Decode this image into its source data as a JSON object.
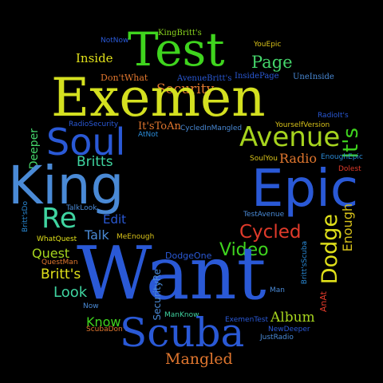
{
  "words": [
    {
      "text": "Security",
      "color": "#e0762e"
    },
    {
      "text": "KingBritt's",
      "color": "#8ad41e"
    },
    {
      "text": "NotNow",
      "color": "#2a59d6"
    },
    {
      "text": "YouEpic",
      "color": "#d8c21a"
    },
    {
      "text": "Test",
      "color": "#3fd41e"
    },
    {
      "text": "Inside",
      "color": "#e0e01a"
    },
    {
      "text": "Page",
      "color": "#44d46a"
    },
    {
      "text": "Don'tWhat",
      "color": "#e0762e"
    },
    {
      "text": "AvenueBritt's",
      "color": "#2a59d6"
    },
    {
      "text": "InsidePage",
      "color": "#2a59d6"
    },
    {
      "text": "UneInside",
      "color": "#4a8ad6"
    },
    {
      "text": "Exemen",
      "color": "#d4e020"
    },
    {
      "text": "RadioIt's",
      "color": "#2a59d6"
    },
    {
      "text": "RadioSecurity",
      "color": "#2a59d6"
    },
    {
      "text": "It'sToAn",
      "color": "#e0762e"
    },
    {
      "text": "CycledInMangled",
      "color": "#4a8ad6"
    },
    {
      "text": "YourselfVersion",
      "color": "#d8c21a"
    },
    {
      "text": "AtNot",
      "color": "#2a8ad6"
    },
    {
      "text": "Soul",
      "color": "#2a59d6"
    },
    {
      "text": "Avenue",
      "color": "#a6d41e"
    },
    {
      "text": "It's",
      "color": "#3fd41e"
    },
    {
      "text": "Deeper",
      "color": "#44d46a"
    },
    {
      "text": "SoulYou",
      "color": "#d8c21a"
    },
    {
      "text": "Radio",
      "color": "#e0762e"
    },
    {
      "text": "EnoughEpic",
      "color": "#2a8ad6"
    },
    {
      "text": "Britts",
      "color": "#3fd4a0"
    },
    {
      "text": "Dolest",
      "color": "#e03a2a"
    },
    {
      "text": "King",
      "color": "#4a8ad6"
    },
    {
      "text": "Epic",
      "color": "#2a59d6"
    },
    {
      "text": "Britt'sDo",
      "color": "#2a8ad6"
    },
    {
      "text": "TalkLook",
      "color": "#4a8ad6"
    },
    {
      "text": "TestAvenue",
      "color": "#4a8ad6"
    },
    {
      "text": "Re",
      "color": "#3fd4a0"
    },
    {
      "text": "Edit",
      "color": "#2a59d6"
    },
    {
      "text": "Enough",
      "color": "#d8c21a"
    },
    {
      "text": "Dodge",
      "color": "#e0e01a"
    },
    {
      "text": "Cycled",
      "color": "#e03a2a"
    },
    {
      "text": "WhatQuest",
      "color": "#e0e01a"
    },
    {
      "text": "Talk",
      "color": "#4a8ad6"
    },
    {
      "text": "MeEnough",
      "color": "#d8c21a"
    },
    {
      "text": "Britt'sScuba",
      "color": "#2a8ad6"
    },
    {
      "text": "Quest",
      "color": "#a6d41e"
    },
    {
      "text": "DodgeOne",
      "color": "#2a59d6"
    },
    {
      "text": "Video",
      "color": "#3fd41e"
    },
    {
      "text": "QuestMan",
      "color": "#e0762e"
    },
    {
      "text": "Want",
      "color": "#2a59d6"
    },
    {
      "text": "Britt's",
      "color": "#e0e01a"
    },
    {
      "text": "SecurityRe",
      "color": "#4a8ad6"
    },
    {
      "text": "Look",
      "color": "#3fd4a0"
    },
    {
      "text": "Man",
      "color": "#4a8ad6"
    },
    {
      "text": "AnAt",
      "color": "#e03a2a"
    },
    {
      "text": "Now",
      "color": "#4a8ad6"
    },
    {
      "text": "ManKnow",
      "color": "#3fd4a0"
    },
    {
      "text": "Album",
      "color": "#a6d41e"
    },
    {
      "text": "Know",
      "color": "#3fd41e"
    },
    {
      "text": "ExemenTest",
      "color": "#2a59d6"
    },
    {
      "text": "ScubaDon't",
      "color": "#e0762e"
    },
    {
      "text": "NewDeeper",
      "color": "#2a59d6"
    },
    {
      "text": "Scuba",
      "color": "#2a59d6"
    },
    {
      "text": "JustRadio",
      "color": "#4a8ad6"
    },
    {
      "text": "Mangled",
      "color": "#e0762e"
    }
  ]
}
